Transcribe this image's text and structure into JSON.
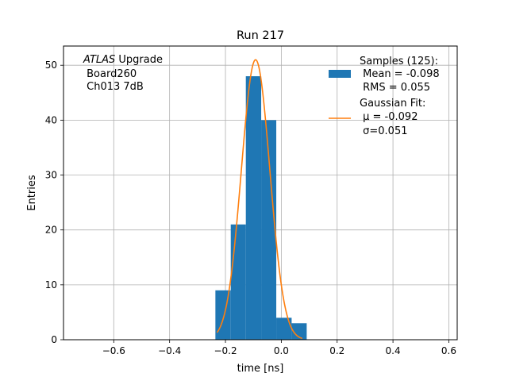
{
  "chart_data": {
    "type": "bar",
    "title": "Run 217",
    "xlabel": "time [ns]",
    "ylabel": "Entries",
    "xlim": [
      -0.78,
      0.63
    ],
    "ylim": [
      0,
      53.5
    ],
    "grid": true,
    "x_ticks": [
      -0.6,
      -0.4,
      -0.2,
      0.0,
      0.2,
      0.4,
      0.6
    ],
    "x_tick_labels": [
      "−0.6",
      "−0.4",
      "−0.2",
      "0.0",
      "0.2",
      "0.4",
      "0.6"
    ],
    "y_ticks": [
      0,
      10,
      20,
      30,
      40,
      50
    ],
    "y_tick_labels": [
      "0",
      "10",
      "20",
      "30",
      "40",
      "50"
    ],
    "histogram": {
      "color": "#1f77b4",
      "bin_edges": [
        -0.236,
        -0.181,
        -0.127,
        -0.072,
        -0.018,
        0.037,
        0.091
      ],
      "counts": [
        9,
        21,
        48,
        40,
        4,
        3
      ]
    },
    "fit_curve": {
      "color": "#ff7f0e",
      "peak": 51,
      "mu": -0.092,
      "sigma": 0.051,
      "x_range": [
        -0.23,
        0.075
      ]
    },
    "legend": {
      "placement": "top-right",
      "entries": [
        {
          "lines": [
            "Samples (125):",
            " Mean = -0.098",
            " RMS = 0.055"
          ]
        },
        {
          "lines": [
            "Gaussian Fit:",
            " μ = -0.092",
            " σ=0.051"
          ]
        }
      ]
    },
    "annotation": {
      "italic_prefix": "ATLAS",
      "lines": [
        " Upgrade",
        " Board260",
        " Ch013 7dB"
      ]
    }
  }
}
